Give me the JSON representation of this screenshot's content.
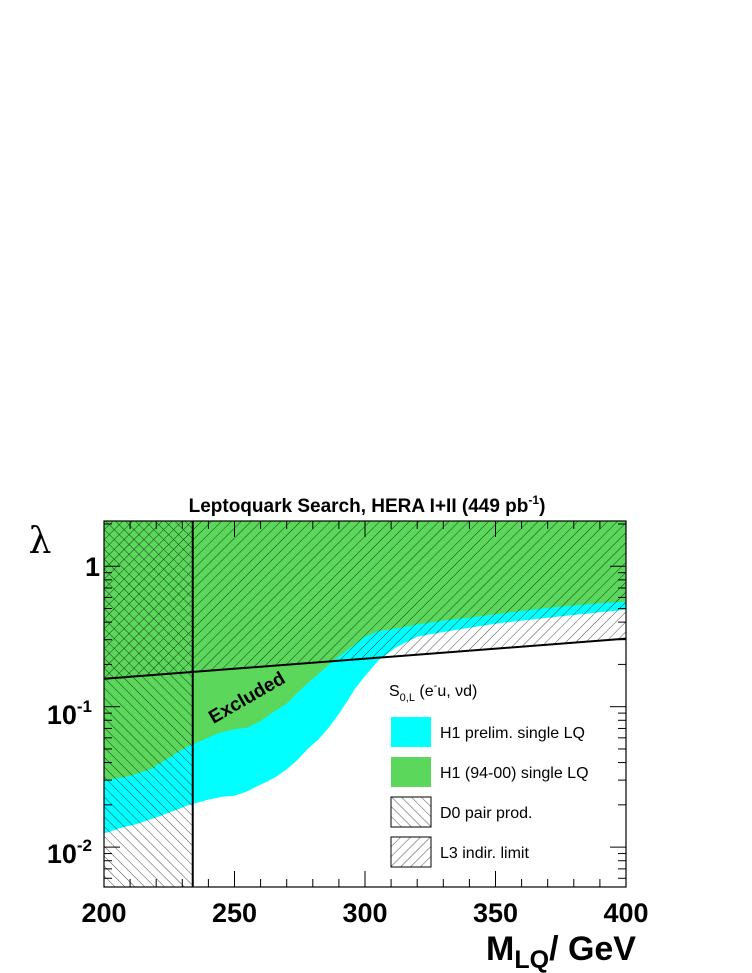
{
  "chart_data": {
    "type": "area",
    "title": "Leptoquark Search, HERA I+II (449 pb",
    "title_sup": "-1",
    "title_end": ")",
    "xlabel": "M",
    "xlabel_sub": "LQ",
    "xlabel_end": "/ GeV",
    "ylabel": "λ",
    "xlim": [
      200,
      400
    ],
    "ylim": [
      0.0052,
      2.1
    ],
    "yscale": "log",
    "x_ticks": [
      200,
      250,
      300,
      350,
      400
    ],
    "x_tick_labels": [
      "200",
      "250",
      "300",
      "350",
      "400"
    ],
    "y_ticks": [
      0.01,
      0.1,
      1
    ],
    "y_tick_labels": [
      {
        "base": "10",
        "exp": "-2"
      },
      {
        "base": "10",
        "exp": "-1"
      },
      {
        "base": "1",
        "exp": ""
      }
    ],
    "legend_header": {
      "main": "S",
      "sub": "0,L",
      "rest1": " (e",
      "sup": "-",
      "rest2": "u, νd)"
    },
    "legend_position": "bottom-right",
    "annotation": "Excluded",
    "colors": {
      "h1_prelim": "#00ffff",
      "h1_94_00": "#5bd75b",
      "line": "#000000"
    },
    "series": [
      {
        "name": "H1 prelim. single LQ",
        "style": "filled",
        "x": [
          200,
          207,
          212,
          218,
          222,
          228,
          232,
          235,
          240,
          245,
          250,
          255,
          258,
          262,
          266,
          270,
          274,
          278,
          282,
          286,
          290,
          293,
          296,
          300,
          305,
          312,
          320,
          330,
          340,
          350,
          360,
          370,
          380,
          390,
          400
        ],
        "y": [
          0.0125,
          0.0138,
          0.0145,
          0.0158,
          0.0168,
          0.0185,
          0.0198,
          0.0205,
          0.0218,
          0.0228,
          0.0232,
          0.025,
          0.0268,
          0.029,
          0.0318,
          0.0358,
          0.0415,
          0.05,
          0.058,
          0.0705,
          0.089,
          0.108,
          0.133,
          0.165,
          0.213,
          0.265,
          0.315,
          0.34,
          0.365,
          0.39,
          0.41,
          0.43,
          0.45,
          0.47,
          0.49
        ]
      },
      {
        "name": "H1 (94-00) single LQ",
        "style": "filled",
        "x": [
          200,
          208,
          212,
          218,
          222,
          228,
          232,
          238,
          244,
          250,
          255,
          260,
          265,
          270,
          274,
          278,
          282,
          286,
          290,
          295,
          300,
          305,
          312,
          320,
          330,
          340,
          350,
          360,
          370,
          380,
          390,
          400
        ],
        "y": [
          0.03,
          0.0315,
          0.033,
          0.036,
          0.04,
          0.047,
          0.052,
          0.058,
          0.065,
          0.069,
          0.071,
          0.079,
          0.092,
          0.105,
          0.125,
          0.147,
          0.17,
          0.198,
          0.228,
          0.268,
          0.315,
          0.345,
          0.36,
          0.385,
          0.41,
          0.43,
          0.455,
          0.48,
          0.505,
          0.525,
          0.545,
          0.56
        ]
      },
      {
        "name": "D0 pair prod.",
        "style": "hatched",
        "x": [
          200,
          234
        ],
        "y": [
          0.0052,
          2.1
        ]
      },
      {
        "name": "L3 indir. limit",
        "style": "hatched",
        "x": [
          200,
          400
        ],
        "y": [
          0.158,
          0.305
        ]
      }
    ]
  }
}
